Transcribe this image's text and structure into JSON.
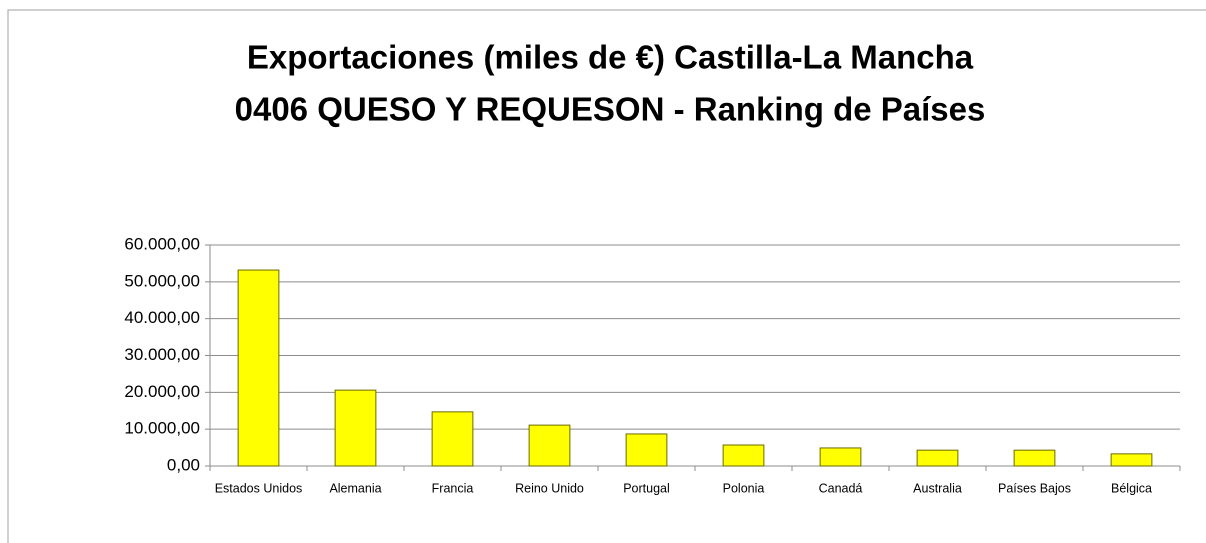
{
  "chart_data": {
    "type": "bar",
    "title": [
      "Exportaciones (miles de €) Castilla-La Mancha",
      "0406 QUESO Y REQUESON - Ranking de Países"
    ],
    "categories": [
      "Estados Unidos",
      "Alemania",
      "Francia",
      "Reino Unido",
      "Portugal",
      "Polonia",
      "Canadá",
      "Australia",
      "Países Bajos",
      "Bélgica"
    ],
    "values": [
      53200,
      20600,
      14700,
      11100,
      8700,
      5700,
      4900,
      4300,
      4300,
      3300
    ],
    "color": "#ffff00",
    "ylim": [
      0,
      60000
    ],
    "yticks": [
      {
        "value": 0,
        "label": "0,00"
      },
      {
        "value": 10000,
        "label": "10.000,00"
      },
      {
        "value": 20000,
        "label": "20.000,00"
      },
      {
        "value": 30000,
        "label": "30.000,00"
      },
      {
        "value": 40000,
        "label": "40.000,00"
      },
      {
        "value": 50000,
        "label": "50.000,00"
      },
      {
        "value": 60000,
        "label": "60.000,00"
      }
    ],
    "grid": true
  }
}
